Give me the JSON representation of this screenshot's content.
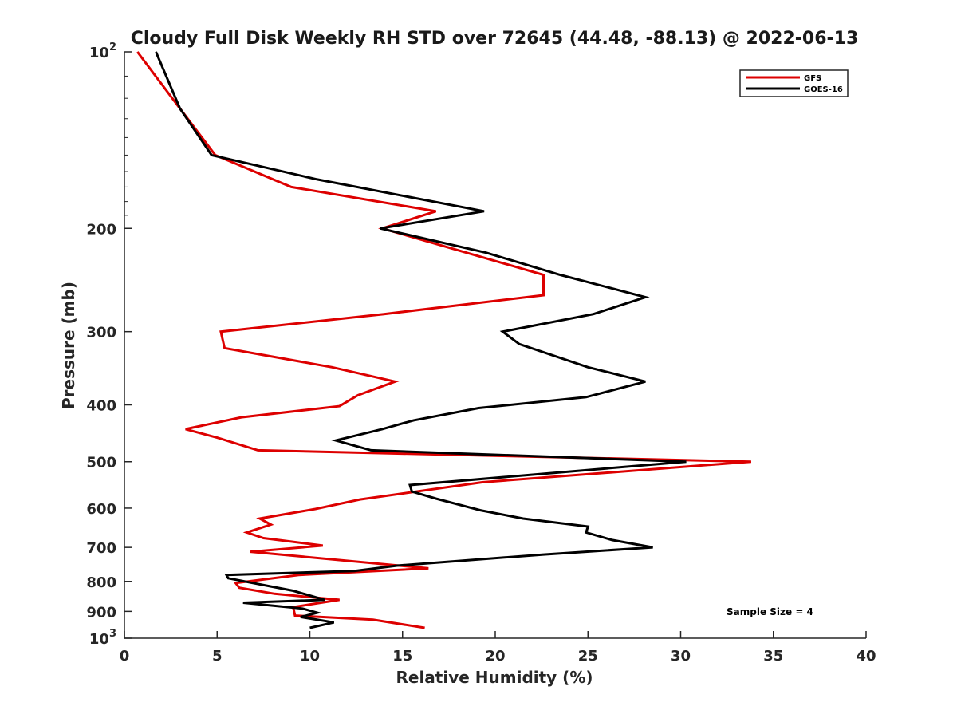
{
  "chart_data": {
    "type": "line",
    "title": "Cloudy Full Disk Weekly RH STD over 72645 (44.48, -88.13) @ 2022-06-13",
    "xlabel": "Relative Humidity (%)",
    "ylabel": "Pressure (mb)",
    "xlim": [
      0,
      40
    ],
    "ylim": [
      100,
      1000
    ],
    "y_scale": "log",
    "y_reversed": true,
    "grid": false,
    "legend_position": "top-right",
    "x_ticks": [
      "0",
      "5",
      "10",
      "15",
      "20",
      "25",
      "30",
      "35",
      "40"
    ],
    "y_ticks": [
      {
        "value": 100,
        "label": "10",
        "sup": "2"
      },
      {
        "value": 200,
        "label": "200",
        "sup": ""
      },
      {
        "value": 300,
        "label": "300",
        "sup": ""
      },
      {
        "value": 400,
        "label": "400",
        "sup": ""
      },
      {
        "value": 500,
        "label": "500",
        "sup": ""
      },
      {
        "value": 600,
        "label": "600",
        "sup": ""
      },
      {
        "value": 700,
        "label": "700",
        "sup": ""
      },
      {
        "value": 800,
        "label": "800",
        "sup": ""
      },
      {
        "value": 900,
        "label": "900",
        "sup": ""
      },
      {
        "value": 1000,
        "label": "10",
        "sup": "3"
      }
    ],
    "series": [
      {
        "name": "GFS",
        "color": "#dd0000",
        "points": [
          [
            0.7,
            100
          ],
          [
            3.0,
            125
          ],
          [
            4.9,
            150
          ],
          [
            9.0,
            170
          ],
          [
            16.8,
            187
          ],
          [
            13.9,
            200
          ],
          [
            22.6,
            240
          ],
          [
            22.6,
            260
          ],
          [
            14.0,
            280
          ],
          [
            5.2,
            300
          ],
          [
            5.4,
            320
          ],
          [
            11.2,
            345
          ],
          [
            14.6,
            365
          ],
          [
            12.6,
            385
          ],
          [
            11.6,
            402
          ],
          [
            6.3,
            420
          ],
          [
            3.3,
            440
          ],
          [
            5.0,
            455
          ],
          [
            7.2,
            478
          ],
          [
            33.8,
            500
          ],
          [
            19.3,
            542
          ],
          [
            12.7,
            580
          ],
          [
            10.3,
            602
          ],
          [
            7.3,
            625
          ],
          [
            7.9,
            640
          ],
          [
            6.6,
            660
          ],
          [
            7.5,
            675
          ],
          [
            10.7,
            695
          ],
          [
            6.8,
            712
          ],
          [
            16.4,
            760
          ],
          [
            9.4,
            780
          ],
          [
            6.0,
            805
          ],
          [
            6.2,
            820
          ],
          [
            8.1,
            840
          ],
          [
            11.6,
            860
          ],
          [
            9.1,
            885
          ],
          [
            9.2,
            915
          ],
          [
            13.4,
            930
          ],
          [
            16.2,
            960
          ]
        ]
      },
      {
        "name": "GOES-16",
        "color": "#000000",
        "points": [
          [
            1.7,
            100
          ],
          [
            3.0,
            125
          ],
          [
            4.7,
            150
          ],
          [
            10.4,
            165
          ],
          [
            19.4,
            187
          ],
          [
            13.8,
            200
          ],
          [
            19.5,
            220
          ],
          [
            23.5,
            240
          ],
          [
            28.1,
            262
          ],
          [
            25.3,
            280
          ],
          [
            20.4,
            300
          ],
          [
            21.3,
            315
          ],
          [
            25.0,
            345
          ],
          [
            28.1,
            365
          ],
          [
            24.9,
            388
          ],
          [
            19.1,
            405
          ],
          [
            15.6,
            425
          ],
          [
            13.9,
            440
          ],
          [
            11.4,
            460
          ],
          [
            13.3,
            478
          ],
          [
            30.3,
            500
          ],
          [
            15.4,
            548
          ],
          [
            15.5,
            562
          ],
          [
            16.8,
            578
          ],
          [
            19.2,
            605
          ],
          [
            21.5,
            625
          ],
          [
            25.0,
            645
          ],
          [
            24.9,
            660
          ],
          [
            26.3,
            680
          ],
          [
            28.5,
            700
          ],
          [
            22.6,
            720
          ],
          [
            14.7,
            752
          ],
          [
            12.4,
            768
          ],
          [
            5.5,
            780
          ],
          [
            5.6,
            790
          ],
          [
            9.1,
            830
          ],
          [
            10.8,
            860
          ],
          [
            6.4,
            870
          ],
          [
            9.6,
            890
          ],
          [
            10.4,
            905
          ],
          [
            9.5,
            920
          ],
          [
            11.3,
            940
          ],
          [
            10.0,
            960
          ]
        ]
      }
    ],
    "annotations": [
      {
        "text": "Sample Size = 4"
      }
    ]
  }
}
